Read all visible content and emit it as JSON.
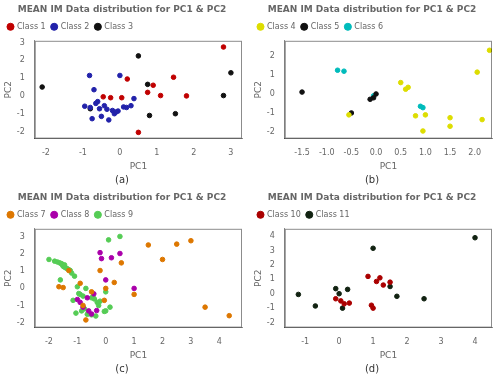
{
  "chart_data": [
    {
      "type": "scatter",
      "title": "MEAN IM Data distribution for PC1 & PC2",
      "xlabel": "PC1",
      "ylabel": "PC2",
      "annotations": [
        "(a)"
      ],
      "legend": "upper left",
      "grid": false,
      "xlim": [
        -2.3,
        3.3
      ],
      "ylim": [
        -2.4,
        3.1
      ],
      "xticks": [
        -2,
        -1,
        0,
        1,
        2,
        3
      ],
      "yticks": [
        -2,
        -1,
        0,
        1,
        2,
        3
      ],
      "series": [
        {
          "name": "Class 1",
          "color": "#c00000",
          "x": [
            0.2,
            0.75,
            0.05,
            -0.45,
            0.9,
            1.1,
            1.45,
            2.8,
            1.8,
            0.5,
            -0.25
          ],
          "values": [
            0.95,
            0.2,
            -0.1,
            -0.05,
            0.6,
            0.02,
            1.05,
            2.75,
            0.0,
            -2.05,
            -0.1
          ]
        },
        {
          "name": "Class 2",
          "color": "#2222aa",
          "x": [
            -0.7,
            -0.95,
            -0.8,
            -0.55,
            -0.35,
            -0.2,
            -0.05,
            0.1,
            0.3,
            -0.6,
            -0.5,
            -0.75,
            -0.42,
            -0.15,
            0.18,
            0.0,
            -0.82,
            0.38,
            -0.65,
            -0.3,
            -0.1
          ],
          "values": [
            0.35,
            -0.58,
            -0.65,
            -0.72,
            -0.75,
            -0.82,
            -0.85,
            -0.62,
            -0.55,
            -0.32,
            -1.15,
            -1.28,
            -0.55,
            -1.0,
            -0.65,
            1.15,
            1.15,
            -0.15,
            -0.42,
            -1.35,
            -0.9
          ]
        },
        {
          "name": "Class 3",
          "color": "#111111",
          "x": [
            -2.1,
            -0.8,
            0.5,
            0.75,
            0.8,
            1.5,
            3.0,
            2.8
          ],
          "values": [
            0.5,
            -0.72,
            2.25,
            0.65,
            -1.1,
            -1.0,
            1.3,
            0.02
          ]
        }
      ]
    },
    {
      "type": "scatter",
      "title": "MEAN IM Data distribution for PC1 & PC2",
      "xlabel": "PC1",
      "ylabel": "PC2",
      "annotations": [
        "(b)"
      ],
      "legend": "upper left",
      "grid": false,
      "xlim": [
        -1.85,
        2.35
      ],
      "ylim": [
        -2.35,
        2.8
      ],
      "xticks": [
        {
          "value": -1.5,
          "label": "-1.5"
        },
        {
          "value": -1.0,
          "label": "-1.0"
        },
        {
          "value": -0.5,
          "label": "-0.5"
        },
        {
          "value": 0.0,
          "label": "0.0"
        },
        {
          "value": 0.5,
          "label": "0.5"
        },
        {
          "value": 1.0,
          "label": "1.0"
        },
        {
          "value": 1.5,
          "label": "1.5"
        },
        {
          "value": 2.0,
          "label": "2.0"
        }
      ],
      "yticks": [
        -2,
        -1,
        0,
        1,
        2
      ],
      "series": [
        {
          "name": "Class 4",
          "color": "#dddd00",
          "x": [
            0.5,
            0.65,
            0.6,
            1.5,
            2.15,
            2.05,
            0.8,
            0.95,
            -0.55,
            2.3,
            1.5,
            1.0
          ],
          "values": [
            0.6,
            0.35,
            0.25,
            -1.25,
            -1.35,
            1.15,
            -1.15,
            -1.95,
            -1.1,
            2.3,
            -1.7,
            -1.1
          ]
        },
        {
          "name": "Class 5",
          "color": "#111111",
          "x": [
            -1.5,
            -0.5,
            -0.05,
            0.0,
            -0.12
          ],
          "values": [
            0.1,
            -1.0,
            -0.2,
            0.0,
            -0.28
          ]
        },
        {
          "name": "Class 6",
          "color": "#00bbbb",
          "x": [
            -0.78,
            -0.65,
            0.9,
            0.95,
            -0.05
          ],
          "values": [
            1.25,
            1.2,
            -0.65,
            -0.72,
            -0.1
          ]
        }
      ]
    },
    {
      "type": "scatter",
      "title": "MEAN IM Data distribution for PC1 & PC2",
      "xlabel": "PC1",
      "ylabel": "PC2",
      "annotations": [
        "(c)"
      ],
      "legend": "upper left",
      "grid": false,
      "xlim": [
        -2.5,
        4.8
      ],
      "ylim": [
        -2.3,
        3.5
      ],
      "xticks": [
        -2,
        -1,
        0,
        1,
        2,
        3,
        4
      ],
      "yticks": [
        -2,
        -1,
        0,
        1,
        2,
        3
      ],
      "series": [
        {
          "name": "Class 7",
          "color": "#dd7700",
          "x": [
            -1.65,
            -1.5,
            -0.9,
            -0.5,
            -0.2,
            0.3,
            1.0,
            2.0,
            2.5,
            3.0,
            3.5,
            4.35,
            -1.3,
            -0.8,
            0.55,
            -0.7,
            0.0,
            1.5,
            -0.05
          ],
          "values": [
            0.1,
            0.05,
            0.3,
            -0.2,
            1.05,
            0.35,
            -0.35,
            1.7,
            2.6,
            2.8,
            -1.1,
            -1.6,
            1.05,
            -1.0,
            1.5,
            -1.85,
            0.0,
            2.55,
            -0.7
          ]
        },
        {
          "name": "Class 8",
          "color": "#aa00aa",
          "x": [
            -1.0,
            -0.9,
            -0.8,
            -0.6,
            -0.32,
            0.0,
            0.2,
            0.5,
            1.0,
            -0.5,
            -0.42,
            -0.2,
            -0.65,
            -0.15
          ],
          "values": [
            -0.65,
            -0.82,
            -1.1,
            -1.32,
            -1.3,
            0.5,
            1.8,
            2.05,
            0.0,
            -1.5,
            -0.32,
            2.1,
            -0.55,
            1.75
          ]
        },
        {
          "name": "Class 9",
          "color": "#55cc55",
          "x": [
            -2.0,
            -1.8,
            -1.7,
            -1.62,
            -1.55,
            -1.5,
            -1.45,
            -1.4,
            -1.35,
            -1.3,
            -1.25,
            -1.2,
            -1.1,
            -1.0,
            -0.95,
            -0.9,
            -0.8,
            -0.7,
            -0.5,
            -0.4,
            -0.2,
            0.0,
            0.1,
            0.5,
            0.0,
            -0.05,
            0.15,
            -0.65,
            -0.5,
            -1.05,
            -0.35,
            -0.3,
            -1.15,
            -0.75,
            -1.55,
            -0.85,
            -1.6,
            -0.45,
            -1.45,
            -0.25
          ],
          "values": [
            1.7,
            1.6,
            1.55,
            1.5,
            1.42,
            1.3,
            1.25,
            1.2,
            1.15,
            1.1,
            1.05,
            0.9,
            0.72,
            0.1,
            -0.3,
            -0.35,
            -0.45,
            0.0,
            -0.55,
            -0.62,
            -0.75,
            -0.2,
            2.85,
            3.05,
            -1.32,
            -1.35,
            -1.1,
            -1.52,
            -1.55,
            -1.45,
            -1.62,
            -0.82,
            -0.7,
            -1.2,
            1.45,
            -1.32,
            0.5,
            -0.5,
            1.38,
            -1.0
          ]
        }
      ]
    },
    {
      "type": "scatter",
      "title": "MEAN IM Data distribution for PC1 & PC2",
      "xlabel": "PC1",
      "ylabel": "PC2",
      "annotations": [
        "(d)"
      ],
      "legend": "upper left",
      "grid": false,
      "xlim": [
        -1.6,
        4.5
      ],
      "ylim": [
        -2.35,
        4.5
      ],
      "xticks": [
        -1,
        0,
        1,
        2,
        3,
        4
      ],
      "yticks": [
        -2,
        -1,
        0,
        1,
        2,
        3,
        4
      ],
      "series": [
        {
          "name": "Class 10",
          "color": "#aa0000",
          "x": [
            0.85,
            1.1,
            1.3,
            1.5,
            0.95,
            1.2,
            0.15,
            0.05,
            1.0,
            -0.1,
            0.3
          ],
          "values": [
            1.2,
            0.85,
            0.6,
            0.8,
            -0.8,
            1.1,
            -0.7,
            -0.5,
            -1.0,
            -0.35,
            -0.65
          ]
        },
        {
          "name": "Class 11",
          "color": "#112211",
          "x": [
            -1.2,
            -0.7,
            -0.1,
            0.0,
            0.1,
            0.25,
            1.0,
            1.5,
            1.7,
            2.5,
            4.0
          ],
          "values": [
            -0.05,
            -0.85,
            0.35,
            0.0,
            -1.0,
            0.3,
            3.15,
            0.5,
            -0.18,
            -0.35,
            3.88
          ]
        }
      ]
    }
  ]
}
